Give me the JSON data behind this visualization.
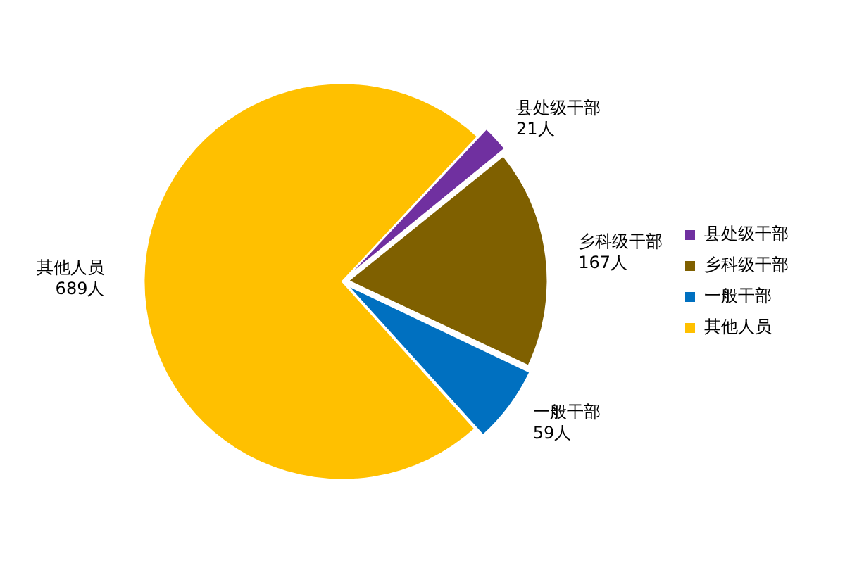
{
  "chart_data": {
    "type": "pie",
    "categories": [
      "县处级干部",
      "乡科级干部",
      "一般干部",
      "其他人员"
    ],
    "values": [
      21,
      167,
      59,
      689
    ],
    "colors": [
      "#7030a0",
      "#7f6000",
      "#0070c0",
      "#ffc000"
    ],
    "value_labels": [
      "21人",
      "167人",
      "59人",
      "689人"
    ],
    "legend": "right"
  }
}
